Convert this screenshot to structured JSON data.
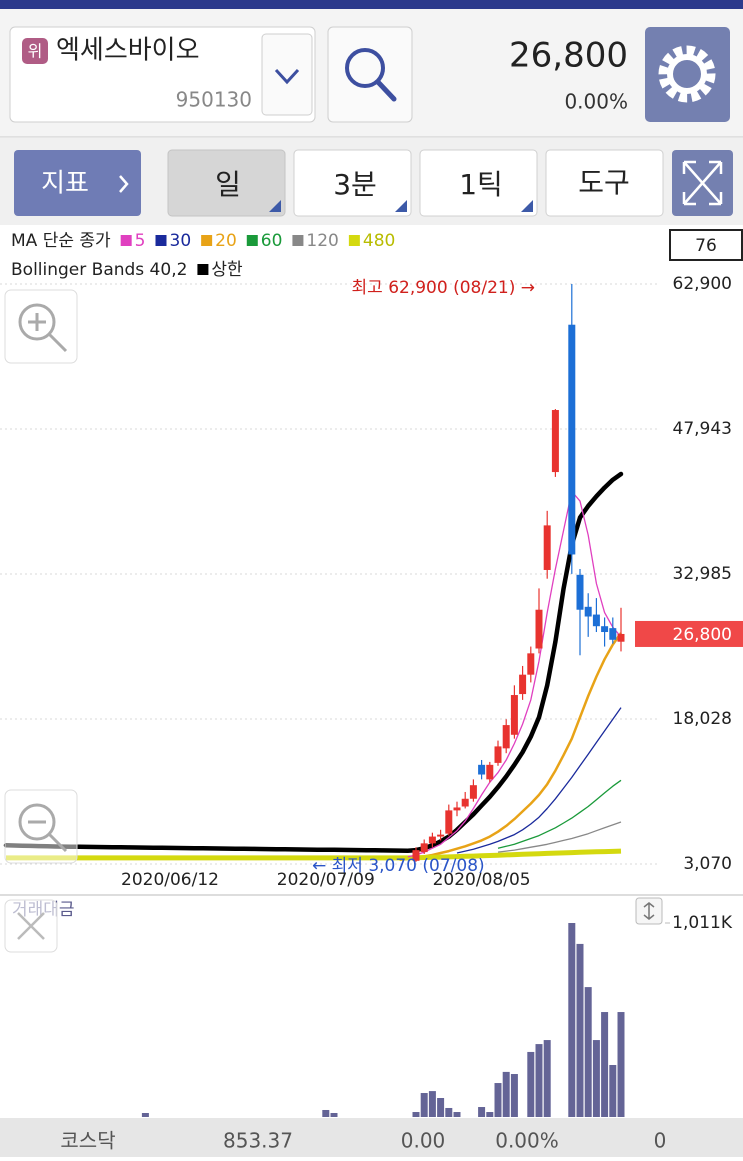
{
  "header": {
    "badge": "위",
    "name": "엑세스바이오",
    "code": "950130",
    "price": "26,800",
    "change": "0.00%"
  },
  "toolbar": {
    "tabs": [
      "지표",
      "일",
      "3분",
      "1틱",
      "도구"
    ]
  },
  "chart_data": [
    {
      "type": "candlestick",
      "legend_title": "MA 단순 종가",
      "indicator": "Bollinger Bands 40,2",
      "indicator_box": "76",
      "categories": [
        null,
        null,
        null,
        null,
        null,
        null,
        null,
        null,
        null,
        null,
        null,
        null,
        null,
        null,
        null,
        null,
        null,
        null,
        null,
        null,
        "2020/06/12",
        null,
        null,
        null,
        null,
        null,
        null,
        null,
        null,
        null,
        null,
        null,
        null,
        null,
        null,
        null,
        null,
        null,
        null,
        "2020/07/09",
        null,
        null,
        null,
        null,
        null,
        null,
        null,
        null,
        null,
        null,
        null,
        null,
        null,
        null,
        null,
        null,
        null,
        null,
        "2020/08/05",
        null,
        null,
        null,
        null,
        null,
        null,
        null,
        null,
        null,
        null,
        null,
        null,
        null,
        null,
        null,
        null,
        null
      ],
      "candles": {
        "up_color": "#e8332f",
        "down_color": "#1c6fd6",
        "open": [
          null,
          null,
          null,
          null,
          null,
          null,
          null,
          null,
          null,
          null,
          null,
          null,
          null,
          null,
          null,
          null,
          null,
          null,
          null,
          null,
          null,
          null,
          null,
          null,
          null,
          null,
          null,
          null,
          null,
          null,
          null,
          null,
          null,
          null,
          null,
          null,
          null,
          null,
          null,
          null,
          null,
          null,
          null,
          null,
          null,
          null,
          null,
          null,
          null,
          null,
          3400,
          4300,
          5200,
          5900,
          6200,
          8600,
          9000,
          9800,
          13300,
          11800,
          13500,
          15000,
          16400,
          20600,
          22600,
          25300,
          33400,
          43500,
          null,
          58700,
          32900,
          29600,
          28800,
          27600,
          27400,
          26000
        ],
        "high": [
          null,
          null,
          null,
          null,
          null,
          null,
          null,
          null,
          null,
          null,
          null,
          null,
          null,
          null,
          null,
          null,
          null,
          null,
          null,
          null,
          null,
          null,
          null,
          null,
          null,
          null,
          null,
          null,
          null,
          null,
          null,
          null,
          null,
          null,
          null,
          null,
          null,
          null,
          null,
          null,
          null,
          null,
          null,
          null,
          null,
          null,
          null,
          null,
          null,
          null,
          4800,
          5600,
          6300,
          6600,
          9200,
          9500,
          10500,
          11800,
          13800,
          13600,
          15800,
          18000,
          21500,
          23500,
          25500,
          31500,
          39500,
          50000,
          null,
          62900,
          33500,
          31000,
          30500,
          28500,
          28500,
          29500
        ],
        "low": [
          null,
          null,
          null,
          null,
          null,
          null,
          null,
          null,
          null,
          null,
          null,
          null,
          null,
          null,
          null,
          null,
          null,
          null,
          null,
          null,
          null,
          null,
          null,
          null,
          null,
          null,
          null,
          null,
          null,
          null,
          null,
          null,
          null,
          null,
          null,
          null,
          null,
          null,
          null,
          null,
          null,
          null,
          null,
          null,
          null,
          null,
          null,
          null,
          null,
          null,
          3300,
          4100,
          4800,
          5500,
          6000,
          8000,
          8800,
          9500,
          11800,
          11500,
          13200,
          14500,
          16000,
          20000,
          21800,
          24800,
          32500,
          43000,
          null,
          33000,
          24600,
          26500,
          27000,
          25500,
          25800,
          25000
        ],
        "close": [
          null,
          null,
          null,
          null,
          null,
          null,
          null,
          null,
          null,
          null,
          null,
          null,
          null,
          null,
          null,
          null,
          null,
          null,
          null,
          null,
          null,
          null,
          null,
          null,
          null,
          null,
          null,
          null,
          null,
          null,
          null,
          null,
          null,
          null,
          null,
          null,
          null,
          null,
          null,
          null,
          null,
          null,
          null,
          null,
          null,
          null,
          null,
          null,
          null,
          null,
          4500,
          5200,
          5900,
          6100,
          8600,
          8900,
          9800,
          11200,
          12300,
          13300,
          15200,
          17400,
          20500,
          22600,
          24800,
          29300,
          38000,
          49900,
          null,
          35000,
          29300,
          28600,
          27600,
          27000,
          26200,
          26800
        ]
      },
      "series": [
        {
          "name": "5",
          "color": "#e040c0",
          "values": [
            null,
            null,
            null,
            null,
            null,
            null,
            null,
            null,
            null,
            null,
            null,
            null,
            null,
            null,
            null,
            null,
            null,
            null,
            null,
            null,
            null,
            null,
            null,
            null,
            null,
            null,
            null,
            null,
            null,
            null,
            null,
            null,
            null,
            null,
            null,
            null,
            null,
            null,
            null,
            null,
            null,
            null,
            null,
            null,
            null,
            null,
            null,
            null,
            null,
            3800,
            4000,
            4300,
            4700,
            5100,
            5800,
            6500,
            7500,
            8800,
            10200,
            11500,
            12500,
            13800,
            15500,
            17500,
            20000,
            24000,
            29000,
            33500,
            37500,
            41500,
            40500,
            37000,
            32000,
            29000,
            27500,
            26500
          ]
        },
        {
          "name": "30",
          "color": "#1a2a9c",
          "values": [
            null,
            null,
            null,
            null,
            null,
            null,
            null,
            null,
            null,
            null,
            null,
            null,
            null,
            null,
            null,
            null,
            null,
            null,
            null,
            null,
            null,
            null,
            null,
            null,
            null,
            null,
            null,
            null,
            null,
            null,
            null,
            null,
            null,
            null,
            null,
            null,
            null,
            null,
            null,
            null,
            null,
            null,
            null,
            null,
            null,
            null,
            null,
            null,
            null,
            null,
            null,
            null,
            null,
            null,
            null,
            4200,
            4400,
            4600,
            4850,
            5100,
            5400,
            5750,
            6100,
            6600,
            7200,
            7900,
            8800,
            9800,
            10900,
            12000,
            13200,
            14400,
            15600,
            16800,
            18000,
            19200
          ]
        },
        {
          "name": "20",
          "color": "#e8a317",
          "values": [
            null,
            null,
            null,
            null,
            null,
            null,
            null,
            null,
            null,
            null,
            null,
            null,
            null,
            null,
            null,
            null,
            null,
            null,
            null,
            null,
            null,
            null,
            null,
            null,
            null,
            null,
            null,
            null,
            null,
            null,
            null,
            null,
            null,
            null,
            null,
            null,
            null,
            null,
            null,
            null,
            null,
            null,
            null,
            null,
            null,
            null,
            null,
            null,
            3500,
            3600,
            3700,
            3850,
            4000,
            4200,
            4400,
            4650,
            4900,
            5200,
            5500,
            5900,
            6400,
            7000,
            7700,
            8500,
            9300,
            10200,
            11300,
            12700,
            14300,
            16000,
            18200,
            20400,
            22400,
            24200,
            25700,
            26900
          ]
        },
        {
          "name": "60",
          "color": "#1a9a3a",
          "values": [
            null,
            null,
            null,
            null,
            null,
            null,
            null,
            null,
            null,
            null,
            null,
            null,
            null,
            null,
            null,
            null,
            null,
            null,
            null,
            null,
            null,
            null,
            null,
            null,
            null,
            null,
            null,
            null,
            null,
            null,
            null,
            null,
            null,
            null,
            null,
            null,
            null,
            null,
            null,
            null,
            null,
            null,
            null,
            null,
            null,
            null,
            null,
            null,
            null,
            null,
            null,
            null,
            null,
            null,
            null,
            null,
            null,
            null,
            null,
            null,
            4700,
            4900,
            5100,
            5400,
            5700,
            6000,
            6400,
            6800,
            7300,
            7800,
            8400,
            9000,
            9700,
            10400,
            11100,
            11700
          ]
        },
        {
          "name": "120",
          "color": "#888888",
          "values": [
            null,
            null,
            null,
            null,
            null,
            null,
            null,
            null,
            null,
            null,
            null,
            null,
            null,
            null,
            null,
            null,
            null,
            null,
            null,
            null,
            null,
            null,
            null,
            null,
            null,
            null,
            null,
            null,
            null,
            null,
            null,
            null,
            null,
            null,
            null,
            null,
            null,
            null,
            null,
            null,
            null,
            null,
            null,
            null,
            null,
            null,
            null,
            null,
            null,
            null,
            null,
            null,
            null,
            null,
            null,
            null,
            null,
            null,
            null,
            null,
            4300,
            4400,
            4500,
            4650,
            4800,
            4950,
            5100,
            5300,
            5500,
            5700,
            5950,
            6200,
            6500,
            6800,
            7100,
            7400
          ]
        },
        {
          "name": "480",
          "color": "#d4d90f",
          "values": [
            3700,
            3700,
            3700,
            3700,
            3700,
            3700,
            3700,
            3700,
            3700,
            3700,
            3700,
            3700,
            3700,
            3700,
            3700,
            3700,
            3700,
            3700,
            3700,
            3700,
            3700,
            3700,
            3700,
            3700,
            3700,
            3700,
            3700,
            3700,
            3700,
            3700,
            3700,
            3700,
            3700,
            3700,
            3700,
            3700,
            3700,
            3700,
            3700,
            3700,
            3700,
            3700,
            3700,
            3700,
            3700,
            3700,
            3700,
            3700,
            3700,
            3700,
            3720,
            3740,
            3760,
            3780,
            3800,
            3830,
            3860,
            3890,
            3920,
            3950,
            3980,
            4010,
            4040,
            4070,
            4100,
            4130,
            4160,
            4190,
            4220,
            4250,
            4280,
            4310,
            4330,
            4350,
            4370,
            4400
          ]
        }
      ],
      "bands": {
        "name": "상한",
        "color": "#000000",
        "values": [
          5000,
          4980,
          4960,
          4940,
          4920,
          4900,
          4880,
          4860,
          4850,
          4840,
          4830,
          4820,
          4810,
          4800,
          4790,
          4780,
          4770,
          4760,
          4750,
          4740,
          4730,
          4720,
          4710,
          4700,
          4690,
          4680,
          4670,
          4660,
          4650,
          4640,
          4630,
          4620,
          4610,
          4600,
          4590,
          4580,
          4570,
          4560,
          4550,
          4540,
          4530,
          4520,
          4510,
          4500,
          4490,
          4480,
          4470,
          4460,
          4450,
          4440,
          4500,
          4700,
          5000,
          5400,
          5900,
          6600,
          7400,
          8200,
          9100,
          10000,
          11000,
          12100,
          13300,
          14600,
          16200,
          18200,
          21500,
          26000,
          31500,
          36000,
          38800,
          40000,
          41000,
          41900,
          42700,
          43300
        ]
      },
      "ylim": [
        3070,
        62900
      ],
      "yticks": [
        {
          "value": 3070,
          "label": "3,070"
        },
        {
          "value": 18028,
          "label": "18,028"
        },
        {
          "value": 32985,
          "label": "32,985"
        },
        {
          "value": 47943,
          "label": "47,943"
        },
        {
          "value": 62900,
          "label": "62,900"
        }
      ],
      "grid": true,
      "last_price": {
        "value": 26800,
        "label": "26,800"
      },
      "annotations": [
        {
          "text": "최고 62,900 (08/21) →",
          "color": "#d0201c"
        },
        {
          "text": "← 최저 3,070 (07/08)",
          "color": "#2a55c8"
        }
      ]
    },
    {
      "type": "bar",
      "title": "거래대금",
      "color": "#646496",
      "values": [
        null,
        null,
        null,
        null,
        null,
        null,
        null,
        null,
        null,
        null,
        null,
        null,
        null,
        null,
        null,
        null,
        null,
        20800,
        null,
        null,
        null,
        null,
        null,
        null,
        null,
        null,
        null,
        null,
        null,
        null,
        null,
        null,
        null,
        null,
        null,
        null,
        null,
        null,
        null,
        36500,
        20800,
        null,
        null,
        null,
        null,
        null,
        null,
        null,
        null,
        null,
        26000,
        125000,
        135000,
        99000,
        47000,
        26000,
        null,
        null,
        52000,
        26000,
        177000,
        235000,
        224000,
        null,
        339000,
        380000,
        401000,
        null,
        null,
        1011000,
        902000,
        677000,
        401000,
        547000,
        271000,
        547000
      ],
      "ylim": [
        0,
        1011000
      ],
      "yticks": [
        {
          "value": 1011000,
          "label": "1,011K"
        }
      ]
    }
  ],
  "footer": {
    "index_name": "코스닥",
    "index_value": "853.37",
    "change": "0.00",
    "change_rate": "0.00%",
    "volume": "0"
  }
}
